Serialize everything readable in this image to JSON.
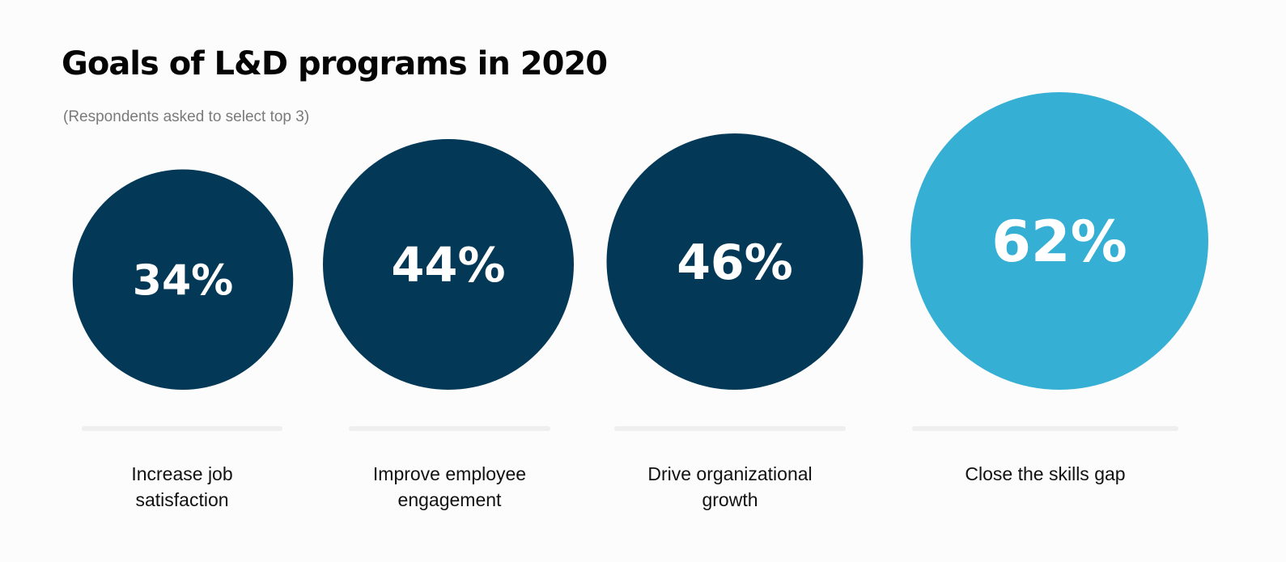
{
  "title": "Goals of L&D programs in 2020",
  "subtitle": "(Respondents asked to select top 3)",
  "colors": {
    "default": "#033957",
    "highlight": "#35afd3",
    "separator": "#efefef"
  },
  "chart_data": {
    "type": "bubble",
    "title": "Goals of L&D programs in 2020",
    "subtitle": "(Respondents asked to select top 3)",
    "categories": [
      [
        "Increase job",
        "satisfaction"
      ],
      [
        "Improve employee",
        "engagement"
      ],
      [
        "Drive organizational",
        "growth"
      ],
      [
        "Close the skills gap"
      ]
    ],
    "values": [
      34,
      44,
      46,
      62
    ],
    "value_labels": [
      "34%",
      "44%",
      "46%",
      "62%"
    ],
    "highlighted_index": 3,
    "legend": "none",
    "grid": false
  }
}
